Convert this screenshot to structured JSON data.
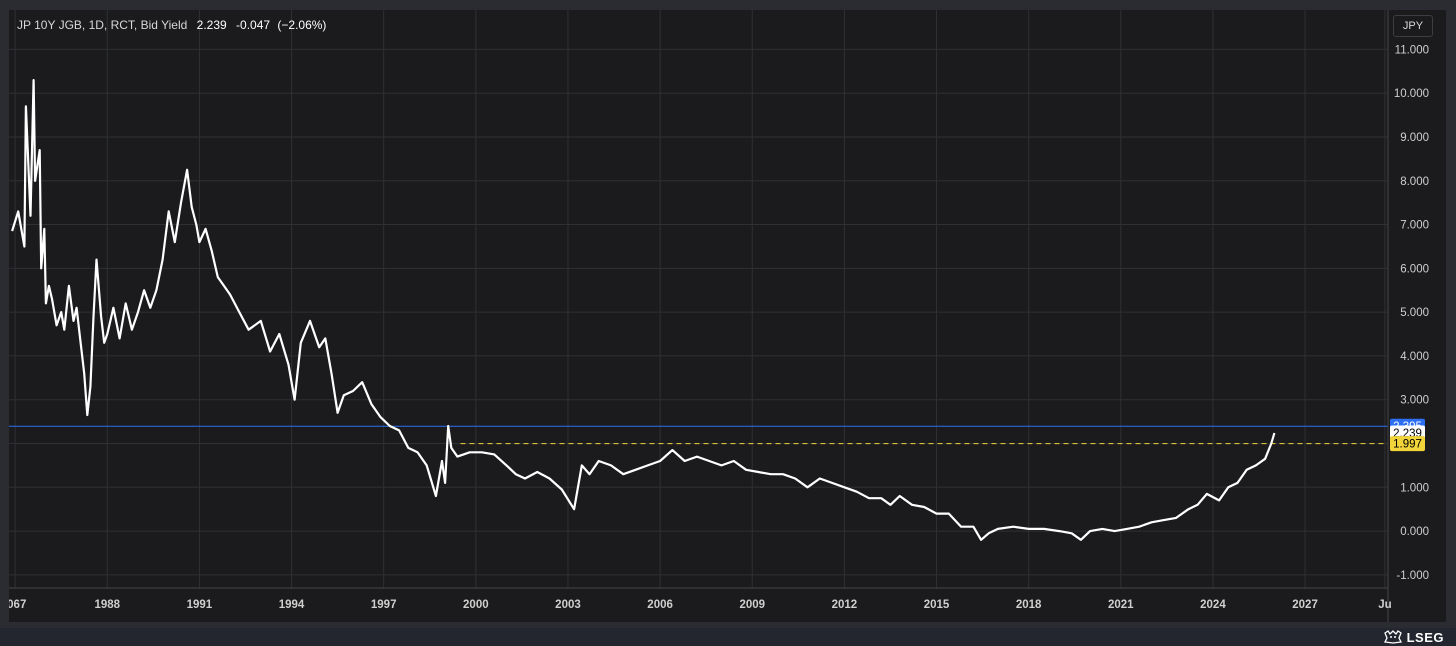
{
  "legend": {
    "symbol_text": "JP 10Y JGB, 1D, RCT, Bid Yield",
    "last": "2.239",
    "change": "-0.047",
    "change_pct": "(−2.06%)"
  },
  "currency_button": "JPY",
  "brand": "LSEG",
  "colors": {
    "background": "#1b1b1d",
    "grid": "#2f3033",
    "series": "#ffffff",
    "hline_blue": "#2d6ff2",
    "hline_yellow": "#f0d43a",
    "axis_text": "#cfcfcf"
  },
  "chart_data": {
    "type": "line",
    "title": "JP 10Y JGB, 1D, RCT, Bid Yield",
    "xlabel": "",
    "ylabel": "",
    "xlim": [
      1984.8,
      2029.7
    ],
    "ylim": [
      -1.3,
      11.9
    ],
    "x_ticks": [
      "’067",
      "1988",
      "1991",
      "1994",
      "1997",
      "2000",
      "2003",
      "2006",
      "2009",
      "2012",
      "2015",
      "2018",
      "2021",
      "2024",
      "2027",
      "Ju"
    ],
    "x_tick_values": [
      1985,
      1988,
      1991,
      1994,
      1997,
      2000,
      2003,
      2006,
      2009,
      2012,
      2015,
      2018,
      2021,
      2024,
      2027,
      2029.6
    ],
    "y_ticks": [
      "11.000",
      "10.000",
      "9.000",
      "8.000",
      "7.000",
      "6.000",
      "5.000",
      "4.000",
      "3.000",
      "2.000",
      "1.000",
      "0.000",
      "-1.000"
    ],
    "y_tick_values": [
      11,
      10,
      9,
      8,
      7,
      6,
      5,
      4,
      3,
      2,
      1,
      0,
      -1
    ],
    "hidden_y_ticks": [
      "2.000"
    ],
    "grid": true,
    "legend": "none",
    "price_labels": [
      {
        "value": 2.395,
        "text": "2.395",
        "bg": "#2d6ff2",
        "fg": "#ffffff"
      },
      {
        "value": 2.239,
        "text": "2.239",
        "bg": "#ffffff",
        "fg": "#000000"
      },
      {
        "value": 1.997,
        "text": "1.997",
        "bg": "#f0d43a",
        "fg": "#000000"
      }
    ],
    "horizontal_lines": [
      {
        "value": 2.395,
        "style": "solid",
        "color": "#2d6ff2",
        "x_start": 1984.8
      },
      {
        "value": 1.997,
        "style": "dashed",
        "color": "#f0d43a",
        "x_start": 1999.5
      }
    ],
    "series": [
      {
        "name": "JP 10Y JGB Bid Yield",
        "x": [
          1984.9,
          1985.1,
          1985.3,
          1985.35,
          1985.5,
          1985.6,
          1985.65,
          1985.8,
          1985.85,
          1985.95,
          1986.0,
          1986.1,
          1986.2,
          1986.35,
          1986.5,
          1986.6,
          1986.75,
          1986.9,
          1987.0,
          1987.1,
          1987.25,
          1987.35,
          1987.45,
          1987.55,
          1987.65,
          1987.8,
          1987.9,
          1988.0,
          1988.2,
          1988.4,
          1988.6,
          1988.8,
          1989.0,
          1989.2,
          1989.4,
          1989.6,
          1989.8,
          1990.0,
          1990.2,
          1990.4,
          1990.6,
          1990.75,
          1990.9,
          1991.0,
          1991.2,
          1991.4,
          1991.6,
          1991.8,
          1992.0,
          1992.3,
          1992.6,
          1993.0,
          1993.3,
          1993.6,
          1993.9,
          1994.1,
          1994.3,
          1994.6,
          1994.9,
          1995.1,
          1995.3,
          1995.5,
          1995.7,
          1996.0,
          1996.3,
          1996.6,
          1996.9,
          1997.2,
          1997.5,
          1997.8,
          1998.1,
          1998.4,
          1998.7,
          1998.9,
          1999.0,
          1999.1,
          1999.2,
          1999.4,
          1999.8,
          2000.2,
          2000.6,
          2001.0,
          2001.3,
          2001.6,
          2002.0,
          2002.4,
          2002.8,
          2003.2,
          2003.45,
          2003.7,
          2004.0,
          2004.4,
          2004.8,
          2005.2,
          2005.6,
          2006.0,
          2006.4,
          2006.8,
          2007.2,
          2007.6,
          2008.0,
          2008.4,
          2008.8,
          2009.2,
          2009.6,
          2010.0,
          2010.4,
          2010.8,
          2011.2,
          2011.6,
          2012.0,
          2012.4,
          2012.8,
          2013.2,
          2013.5,
          2013.8,
          2014.2,
          2014.6,
          2015.0,
          2015.4,
          2015.8,
          2016.2,
          2016.45,
          2016.7,
          2017.0,
          2017.5,
          2018.0,
          2018.5,
          2019.0,
          2019.4,
          2019.7,
          2020.0,
          2020.4,
          2020.8,
          2021.2,
          2021.6,
          2022.0,
          2022.4,
          2022.8,
          2023.2,
          2023.5,
          2023.8,
          2024.2,
          2024.5,
          2024.8,
          2025.1,
          2025.4,
          2025.7,
          2025.9,
          2026.0
        ],
        "values": [
          6.85,
          7.3,
          6.5,
          9.7,
          7.2,
          10.3,
          8.0,
          8.7,
          6.0,
          6.9,
          5.2,
          5.6,
          5.3,
          4.7,
          5.0,
          4.6,
          5.6,
          4.8,
          5.1,
          4.5,
          3.6,
          2.65,
          3.3,
          4.9,
          6.2,
          4.9,
          4.3,
          4.5,
          5.1,
          4.4,
          5.2,
          4.6,
          5.0,
          5.5,
          5.1,
          5.5,
          6.2,
          7.3,
          6.6,
          7.5,
          8.25,
          7.4,
          7.0,
          6.6,
          6.9,
          6.4,
          5.8,
          5.6,
          5.4,
          5.0,
          4.6,
          4.8,
          4.1,
          4.5,
          3.8,
          3.0,
          4.3,
          4.8,
          4.2,
          4.4,
          3.6,
          2.7,
          3.1,
          3.2,
          3.4,
          2.9,
          2.6,
          2.4,
          2.3,
          1.9,
          1.8,
          1.5,
          0.8,
          1.6,
          1.1,
          2.4,
          1.9,
          1.7,
          1.8,
          1.8,
          1.75,
          1.5,
          1.3,
          1.2,
          1.35,
          1.2,
          0.95,
          0.5,
          1.5,
          1.3,
          1.6,
          1.5,
          1.3,
          1.4,
          1.5,
          1.6,
          1.85,
          1.6,
          1.7,
          1.6,
          1.5,
          1.6,
          1.4,
          1.35,
          1.3,
          1.3,
          1.2,
          1.0,
          1.2,
          1.1,
          1.0,
          0.9,
          0.75,
          0.75,
          0.6,
          0.8,
          0.6,
          0.55,
          0.4,
          0.4,
          0.1,
          0.1,
          -0.2,
          -0.05,
          0.05,
          0.1,
          0.05,
          0.05,
          0.0,
          -0.05,
          -0.2,
          0.0,
          0.05,
          0.0,
          0.05,
          0.1,
          0.2,
          0.25,
          0.3,
          0.5,
          0.6,
          0.85,
          0.7,
          1.0,
          1.1,
          1.4,
          1.5,
          1.65,
          2.0,
          2.239
        ]
      }
    ]
  }
}
